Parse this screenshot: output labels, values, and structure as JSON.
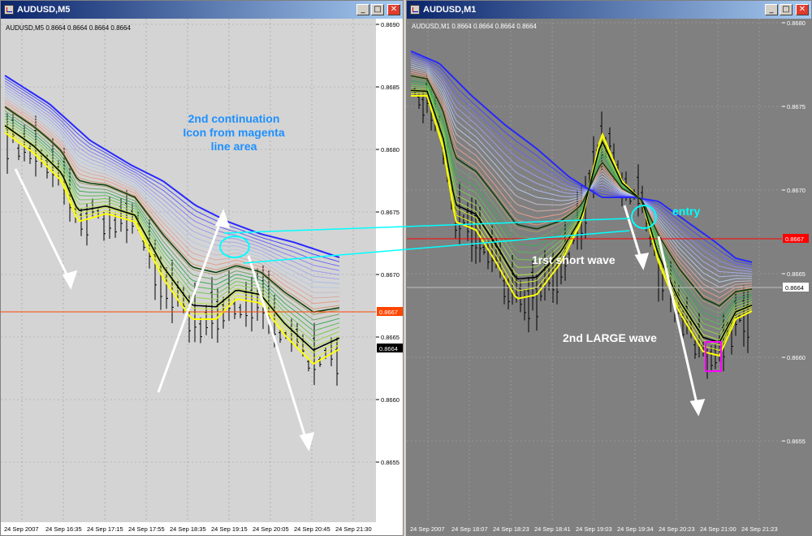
{
  "windows": [
    {
      "title": "AUDUSD,M5",
      "ohlc_header": "AUDUSD,M5  0.8664 0.8664 0.8664 0.8664",
      "price_labels": [
        "0.8690",
        "0.8685",
        "0.8680",
        "0.8675",
        "0.8670",
        "0.8665",
        "0.8660",
        "0.8655"
      ],
      "price_tags": [
        {
          "text": "0.8667",
          "color": "#ff4500"
        },
        {
          "text": "0.8664",
          "color": "#000000"
        }
      ],
      "time_labels": [
        "24 Sep 2007",
        "24 Sep 16:35",
        "24 Sep 17:15",
        "24 Sep 17:55",
        "24 Sep 18:35",
        "24 Sep 19:15",
        "24 Sep 20:05",
        "24 Sep 20:45",
        "24 Sep 21:30"
      ],
      "annotations": [
        "2nd continuation",
        "Icon from magenta",
        "line area"
      ]
    },
    {
      "title": "AUDUSD,M1",
      "ohlc_header": "AUDUSD,M1  0.8664 0.8664 0.8664 0.8664",
      "price_labels": [
        "0.8680",
        "0.8675",
        "0.8670",
        "0.8665",
        "0.8660",
        "0.8655"
      ],
      "price_tags": [
        {
          "text": "0.8667",
          "color": "#ff0000"
        },
        {
          "text": "0.8664",
          "color": "#ffffff"
        }
      ],
      "time_labels": [
        "24 Sep 2007",
        "24 Sep 18:07",
        "24 Sep 18:23",
        "24 Sep 18:41",
        "24 Sep 19:03",
        "24 Sep 19:34",
        "24 Sep 20:23",
        "24 Sep 21:00",
        "24 Sep 21:23"
      ],
      "annotations": [
        "entry",
        "1rst short wave",
        "2nd LARGE wave"
      ]
    }
  ],
  "title_buttons": {
    "minimize": "_",
    "maximize": "□",
    "close": "✕"
  },
  "colors": {
    "left_bg": "#d4d4d4",
    "right_bg": "#808080",
    "guppy_fast": "#ffff00",
    "guppy_slow": "#0000ff",
    "arrow": "#ffffff",
    "link_line": "#00ffff",
    "magenta_box": "#ff00ff"
  }
}
